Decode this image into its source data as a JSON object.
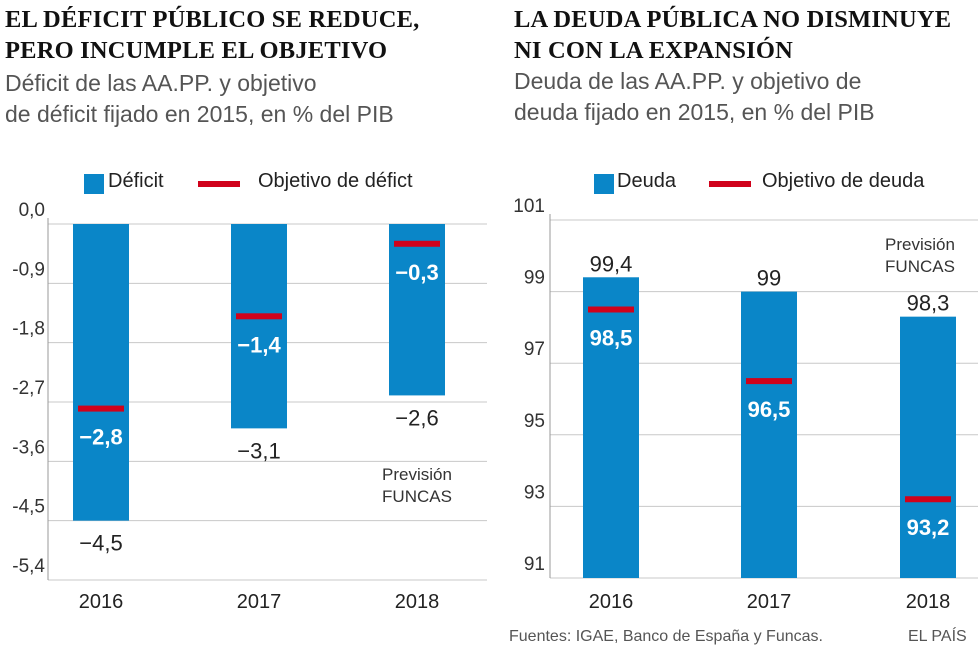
{
  "left": {
    "title_line1": "EL DÉFICIT PÚBLICO SE REDUCE,",
    "title_line2": "PERO INCUMPLE EL OBJETIVO",
    "subtitle_line1": "Déficit de las AA.PP. y objetivo",
    "subtitle_line2": "de déficit fijado en 2015, en % del PIB",
    "legend_bar": "Déficit",
    "legend_line": "Objetivo de défict"
  },
  "right": {
    "title_line1": "LA DEUDA PÚBLICA NO DISMINUYE",
    "title_line2": "NI CON LA EXPANSIÓN",
    "subtitle_line1": "Deuda de las AA.PP. y objetivo de",
    "subtitle_line2": "deuda fijado en 2015, en % del PIB",
    "legend_bar": "Deuda",
    "legend_line": "Objetivo de deuda"
  },
  "colors": {
    "bar": "#0a86c8",
    "target": "#d0021b"
  },
  "footer": {
    "sources": "Fuentes: IGAE, Banco de España y Funcas.",
    "brand": "EL PAÍS"
  },
  "chart_data": [
    {
      "type": "bar",
      "title": "EL DÉFICIT PÚBLICO SE REDUCE, PERO INCUMPLE EL OBJETIVO",
      "categories": [
        "2016",
        "2017",
        "2018"
      ],
      "series": [
        {
          "name": "Déficit",
          "values": [
            -4.5,
            -3.1,
            -2.6
          ],
          "labels": [
            "−4,5",
            "−3,1",
            "−2,6"
          ]
        },
        {
          "name": "Objetivo de défict",
          "values": [
            -2.8,
            -1.4,
            -0.3
          ],
          "labels": [
            "−2,8",
            "−1,4",
            "−0,3"
          ]
        }
      ],
      "ylim": [
        -5.4,
        0
      ],
      "yticks": [
        0,
        -0.9,
        -1.8,
        -2.7,
        -3.6,
        -4.5,
        -5.4
      ],
      "ytick_labels": [
        "0,0",
        "-0,9",
        "-1,8",
        "-2,7",
        "-3,6",
        "-4,5",
        "-5,4"
      ],
      "annotation": {
        "category": "2018",
        "line1": "Previsión",
        "line2": "FUNCAS"
      }
    },
    {
      "type": "bar",
      "title": "LA DEUDA PÚBLICA NO DISMINUYE NI CON LA EXPANSIÓN",
      "categories": [
        "2016",
        "2017",
        "2018"
      ],
      "series": [
        {
          "name": "Deuda",
          "values": [
            99.4,
            99,
            98.3
          ],
          "labels": [
            "99,4",
            "99",
            "98,3"
          ]
        },
        {
          "name": "Objetivo de deuda",
          "values": [
            98.5,
            96.5,
            93.2
          ],
          "labels": [
            "98,5",
            "96,5",
            "93,2"
          ]
        }
      ],
      "ylim": [
        91,
        101
      ],
      "yticks": [
        101,
        99,
        97,
        95,
        93,
        91
      ],
      "ytick_labels": [
        "101",
        "99",
        "97",
        "95",
        "93",
        "91"
      ],
      "annotation": {
        "category": "2018",
        "line1": "Previsión",
        "line2": "FUNCAS"
      }
    }
  ]
}
